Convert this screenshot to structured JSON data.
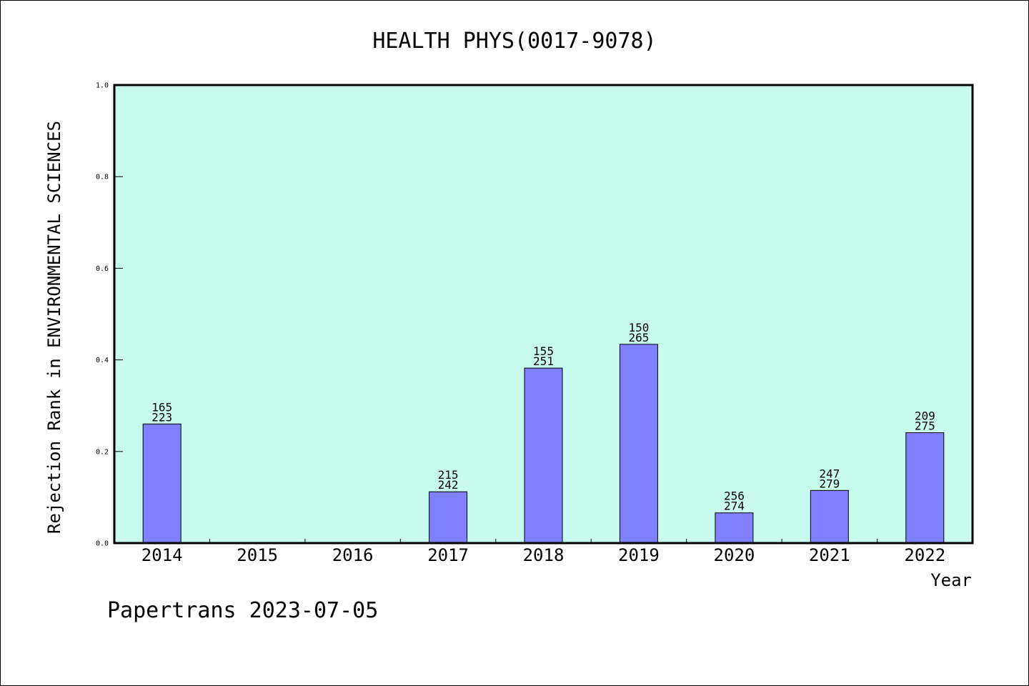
{
  "chart_data": {
    "type": "bar",
    "title": "HEALTH PHYS(0017-9078)",
    "xlabel": "Year",
    "ylabel": "Rejection Rank in ENVIRONMENTAL SCIENCES",
    "categories": [
      "2014",
      "2015",
      "2016",
      "2017",
      "2018",
      "2019",
      "2020",
      "2021",
      "2022"
    ],
    "values": [
      0.26,
      null,
      null,
      0.112,
      0.382,
      0.434,
      0.066,
      0.115,
      0.241
    ],
    "bar_labels": [
      [
        "165",
        "223"
      ],
      null,
      null,
      [
        "215",
        "242"
      ],
      [
        "155",
        "251"
      ],
      [
        "150",
        "265"
      ],
      [
        "256",
        "274"
      ],
      [
        "247",
        "279"
      ],
      [
        "209",
        "275"
      ]
    ],
    "ylim": [
      0.0,
      1.0
    ],
    "yticks": [
      "0.0",
      "0.2",
      "0.4",
      "0.6",
      "0.8",
      "1.0"
    ],
    "grid": false,
    "plot_background": "#c8fcee",
    "bar_color": "#8080ff"
  },
  "footer": "Papertrans 2023-07-05"
}
